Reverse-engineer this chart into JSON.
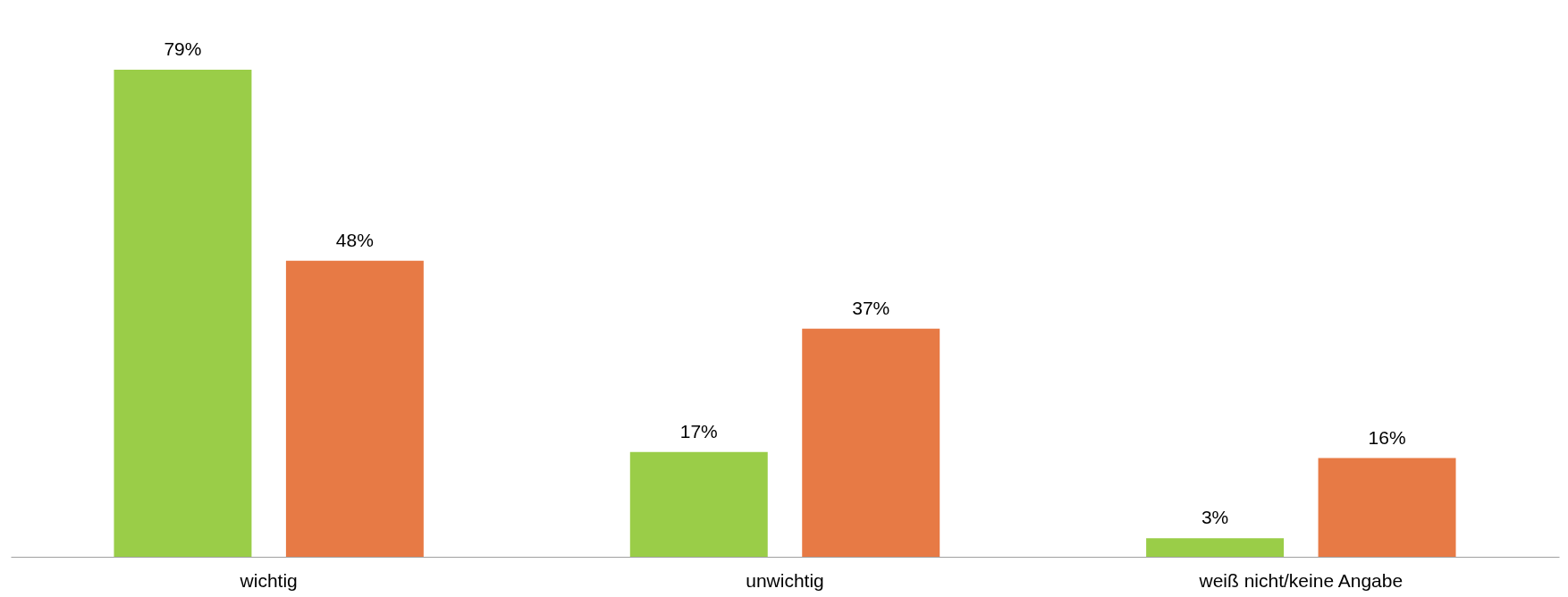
{
  "chart_data": {
    "type": "bar",
    "categories": [
      "wichtig",
      "unwichtig",
      "weiß nicht/keine Angabe"
    ],
    "series": [
      {
        "color": "#9acd48",
        "values": [
          79,
          17,
          3
        ],
        "value_labels": [
          "79%",
          "17%",
          "3%"
        ]
      },
      {
        "color": "#e77a45",
        "values": [
          48,
          37,
          16
        ],
        "value_labels": [
          "48%",
          "37%",
          "16%"
        ]
      }
    ],
    "grid": false,
    "legend": false,
    "tick_labels": "x"
  }
}
